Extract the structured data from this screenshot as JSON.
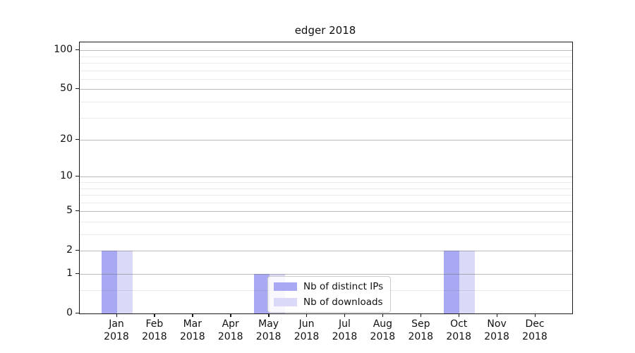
{
  "chart_data": {
    "type": "bar",
    "title": "edger 2018",
    "categories": [
      "Jan\n2018",
      "Feb\n2018",
      "Mar\n2018",
      "Apr\n2018",
      "May\n2018",
      "Jun\n2018",
      "Jul\n2018",
      "Aug\n2018",
      "Sep\n2018",
      "Oct\n2018",
      "Nov\n2018",
      "Dec\n2018"
    ],
    "series": [
      {
        "name": "Nb of distinct IPs",
        "color": "#a9a9f3",
        "values": [
          2,
          0,
          0,
          0,
          1,
          0,
          0,
          0,
          0,
          2,
          0,
          0
        ]
      },
      {
        "name": "Nb of downloads",
        "color": "#dadaf8",
        "values": [
          2,
          0,
          0,
          0,
          1,
          0,
          0,
          0,
          0,
          2,
          0,
          0
        ]
      }
    ],
    "xlabel": "",
    "ylabel": "",
    "yscale": "log1p",
    "ylim": [
      0,
      115
    ],
    "ytick_values": [
      0,
      1,
      2,
      5,
      10,
      20,
      50,
      100
    ],
    "ytick_labels": [
      "0",
      "1",
      "2",
      "5",
      "10",
      "20",
      "50",
      "100"
    ],
    "minor_ytick_values": [
      0.5,
      3,
      4,
      6,
      7,
      8,
      9,
      30,
      40,
      60,
      70,
      80,
      90
    ],
    "grid": "horizontal major and minor gridlines, drawn above bars",
    "legend": {
      "position": "lower center",
      "entries": [
        "Nb of distinct IPs",
        "Nb of downloads"
      ]
    }
  }
}
